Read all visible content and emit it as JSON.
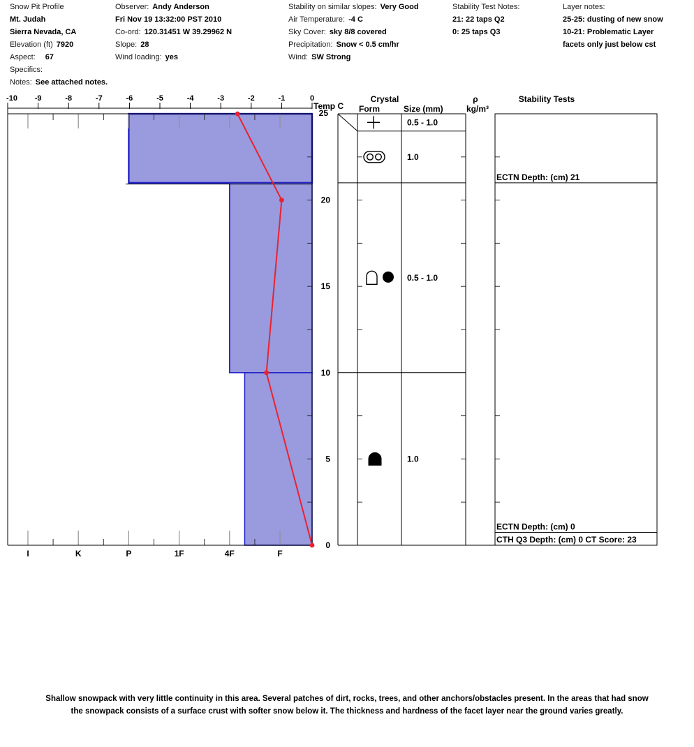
{
  "header": {
    "col1": {
      "title": "Snow Pit Profile",
      "location": "Mt. Judah",
      "region": "Sierra Nevada, CA",
      "elevation_label": "Elevation (ft)",
      "elevation": "7920",
      "aspect_label": "Aspect:",
      "aspect": "67",
      "specifics_label": "Specifics:",
      "notes_label": "Notes:",
      "notes": "See attached notes."
    },
    "col2": {
      "observer_label": "Observer:",
      "observer": "Andy Anderson",
      "datetime": "Fri Nov 19 13:32:00 PST 2010",
      "coord_label": "Co-ord:",
      "coord": "120.31451 W 39.29962 N",
      "slope_label": "Slope:",
      "slope": "28",
      "wind_loading_label": "Wind loading:",
      "wind_loading": "yes"
    },
    "col3": {
      "stability_label": "Stability on similar slopes:",
      "stability": "Very Good",
      "air_temp_label": "Air Temperature:",
      "air_temp": "-4 C",
      "sky_label": "Sky Cover:",
      "sky": "sky 8/8 covered",
      "precip_label": "Precipitation:",
      "precip": "Snow < 0.5 cm/hr",
      "wind_label": "Wind:",
      "wind": "SW Strong"
    },
    "col4": {
      "title": "Stability Test Notes:",
      "lines": [
        "21: 22 taps Q2",
        "0: 25 taps Q3"
      ]
    },
    "col5": {
      "title": "Layer notes:",
      "lines": [
        "25-25: dusting of new snow",
        "10-21: Problematic Layer",
        "facets only just below cst"
      ]
    }
  },
  "chart_data": {
    "type": "snow-pit-profile",
    "temp_axis": {
      "label": "Temp C",
      "min": -10,
      "max": 0,
      "tick_labels": [
        "-10",
        "-9",
        "-8",
        "-7",
        "-6",
        "-5",
        "-4",
        "-3",
        "-2",
        "-1",
        "0"
      ]
    },
    "depth_axis": {
      "unit": "cm",
      "min": 0,
      "max": 25,
      "tick_labels": [
        "25",
        "20",
        "15",
        "10",
        "5",
        "0"
      ],
      "minor_tick_depths": [
        22.5,
        20,
        17.5,
        15,
        12.5,
        7.5,
        5,
        2.5
      ]
    },
    "hardness_axis": {
      "tick_labels": [
        "I",
        "K",
        "P",
        "1F",
        "4F",
        "F"
      ]
    },
    "layers": [
      {
        "top_cm": 25,
        "bottom_cm": 21,
        "hardness": "P",
        "hardness_index": 3.0
      },
      {
        "top_cm": 21,
        "bottom_cm": 10,
        "hardness": "4F",
        "hardness_index": 5.0
      },
      {
        "top_cm": 10,
        "bottom_cm": 0,
        "hardness": "4F-F",
        "hardness_index": 5.3
      }
    ],
    "temperature_profile": [
      {
        "depth_cm": 25,
        "temp_c": -2.45
      },
      {
        "depth_cm": 20,
        "temp_c": -1.0
      },
      {
        "depth_cm": 10,
        "temp_c": -1.5
      },
      {
        "depth_cm": 0,
        "temp_c": 0
      }
    ],
    "problem_layer_line_depth_cm": 21,
    "crystal_table": {
      "header": "Crystal",
      "form_label": "Form",
      "size_label": "Size (mm)",
      "rows": [
        {
          "top_cm": 25,
          "bottom_cm": 24,
          "form": "plus",
          "size": "0.5 -  1.0"
        },
        {
          "top_cm": 24,
          "bottom_cm": 21,
          "form": "paired-circles",
          "size": "1.0"
        },
        {
          "top_cm": 21,
          "bottom_cm": 10,
          "form": "dome-and-dot",
          "size": "0.5 -  1.0"
        },
        {
          "top_cm": 10,
          "bottom_cm": 0,
          "form": "filled-dome",
          "size": "1.0"
        }
      ]
    },
    "density_column": {
      "symbol": "ρ",
      "unit": "kg/m³"
    },
    "stability_panel": {
      "header": "Stability Tests",
      "entries": [
        {
          "text": "ECTN   Depth: (cm) 21",
          "underline_depth_cm": 21
        },
        {
          "text": "ECTN   Depth: (cm) 0",
          "underline_depth_cm": 0.75
        },
        {
          "text": "CTH Q3 Depth: (cm) 0 CT Score: 23",
          "underline_depth_cm": 0
        }
      ]
    },
    "colors": {
      "bar_fill": "#9a9ade",
      "bar_border": "#2323c8",
      "temp_line": "#e82330",
      "problem_line": "#cc2233"
    }
  },
  "footer_notes": [
    "Shallow snowpack with very little continuity in this area. Several patches of dirt, rocks, trees, and other anchors/obstacles present. In the areas that had snow",
    "the snowpack consists of a surface crust with softer snow below it. The thickness and hardness of the facet layer near the ground varies greatly."
  ]
}
